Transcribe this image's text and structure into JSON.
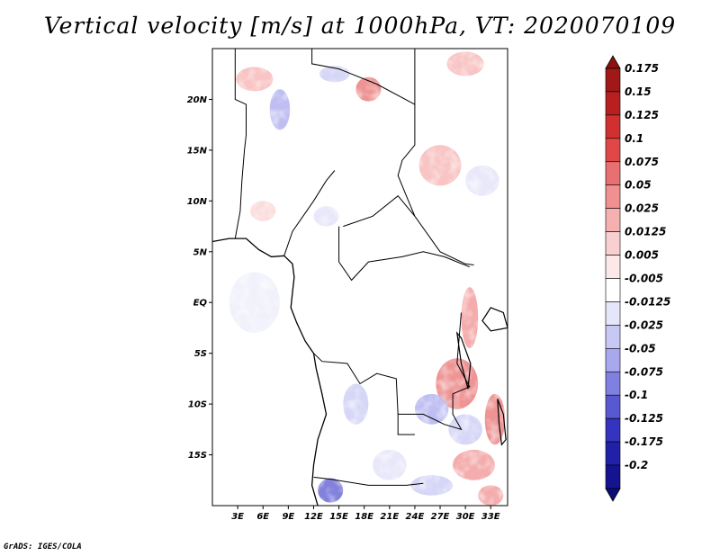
{
  "title": "Vertical velocity [m/s] at 1000hPa, VT: 2020070109",
  "credit": "GrADS: IGES/COLA",
  "map": {
    "lon_range": [
      0,
      35
    ],
    "lat_range": [
      -20,
      25
    ],
    "lat_ticks": [
      {
        "value": 20,
        "label": "20N"
      },
      {
        "value": 15,
        "label": "15N"
      },
      {
        "value": 10,
        "label": "10N"
      },
      {
        "value": 5,
        "label": "5N"
      },
      {
        "value": 0,
        "label": "EQ"
      },
      {
        "value": -5,
        "label": "5S"
      },
      {
        "value": -10,
        "label": "10S"
      },
      {
        "value": -15,
        "label": "15S"
      }
    ],
    "lon_ticks": [
      {
        "value": 3,
        "label": "3E"
      },
      {
        "value": 6,
        "label": "6E"
      },
      {
        "value": 9,
        "label": "9E"
      },
      {
        "value": 12,
        "label": "12E"
      },
      {
        "value": 15,
        "label": "15E"
      },
      {
        "value": 18,
        "label": "18E"
      },
      {
        "value": 21,
        "label": "21E"
      },
      {
        "value": 24,
        "label": "24E"
      },
      {
        "value": 27,
        "label": "27E"
      },
      {
        "value": 30,
        "label": "30E"
      },
      {
        "value": 33,
        "label": "33E"
      }
    ],
    "coastline": [
      [
        0,
        6
      ],
      [
        2,
        6.3
      ],
      [
        4,
        6.3
      ],
      [
        5.5,
        5.2
      ],
      [
        7,
        4.5
      ],
      [
        8.5,
        4.6
      ],
      [
        9.5,
        3.8
      ],
      [
        9.7,
        2.5
      ],
      [
        9.5,
        1
      ],
      [
        9.3,
        -0.5
      ],
      [
        10,
        -2
      ],
      [
        11,
        -3.8
      ],
      [
        12,
        -5
      ],
      [
        12.3,
        -6.5
      ],
      [
        13,
        -9
      ],
      [
        13.5,
        -11
      ],
      [
        12.5,
        -13.5
      ],
      [
        12,
        -16
      ],
      [
        11.8,
        -18
      ],
      [
        12.5,
        -20
      ]
    ],
    "borders": [
      [
        [
          2.7,
          25
        ],
        [
          2.7,
          20
        ],
        [
          4,
          19.5
        ],
        [
          4,
          16.5
        ],
        [
          3.8,
          15
        ]
      ],
      [
        [
          11.8,
          25
        ],
        [
          11.8,
          23.5
        ],
        [
          15,
          23
        ],
        [
          19.5,
          21.5
        ],
        [
          24,
          19.5
        ],
        [
          24,
          25
        ]
      ],
      [
        [
          24,
          19.5
        ],
        [
          24,
          15.5
        ],
        [
          22.5,
          14
        ],
        [
          22,
          12.5
        ],
        [
          23,
          10.5
        ],
        [
          24,
          8.5
        ]
      ],
      [
        [
          24,
          8.5
        ],
        [
          27,
          5
        ],
        [
          30,
          3.8
        ],
        [
          31,
          3.7
        ]
      ],
      [
        [
          15.5,
          7.5
        ],
        [
          19,
          8.5
        ],
        [
          22,
          10.5
        ],
        [
          24,
          8.5
        ]
      ],
      [
        [
          15,
          7.5
        ],
        [
          15,
          4
        ],
        [
          16.5,
          2.2
        ],
        [
          18.5,
          4
        ],
        [
          22.5,
          4.5
        ],
        [
          25,
          5
        ],
        [
          27.5,
          4.5
        ],
        [
          30.5,
          3.5
        ]
      ],
      [
        [
          29.5,
          -1
        ],
        [
          29.3,
          -3
        ],
        [
          29,
          -6
        ],
        [
          30.5,
          -8.3
        ],
        [
          28.5,
          -9
        ],
        [
          28.5,
          -11
        ],
        [
          29.5,
          -12.5
        ],
        [
          27.5,
          -12
        ],
        [
          25,
          -11
        ],
        [
          24,
          -11
        ],
        [
          22,
          -11
        ],
        [
          22,
          -13
        ],
        [
          24,
          -13
        ]
      ],
      [
        [
          12,
          -5
        ],
        [
          13,
          -5.8
        ],
        [
          16,
          -6
        ],
        [
          17.5,
          -8
        ],
        [
          19.5,
          -7
        ],
        [
          21.8,
          -7.5
        ],
        [
          22,
          -11
        ]
      ],
      [
        [
          12,
          -17.2
        ],
        [
          14,
          -17.4
        ],
        [
          18.5,
          -18
        ],
        [
          21,
          -18
        ],
        [
          23,
          -18
        ],
        [
          25,
          -17.8
        ]
      ],
      [
        [
          8.5,
          4.6
        ],
        [
          9.5,
          7
        ],
        [
          12,
          10
        ],
        [
          13.5,
          12
        ],
        [
          14.5,
          13
        ]
      ],
      [
        [
          3.8,
          15
        ],
        [
          3.5,
          12
        ],
        [
          3.3,
          9
        ],
        [
          2.7,
          6.3
        ]
      ]
    ],
    "lakes": [
      [
        [
          29,
          -3
        ],
        [
          29.5,
          -6
        ],
        [
          30.3,
          -8.5
        ],
        [
          30.6,
          -6
        ],
        [
          29.5,
          -3.5
        ]
      ],
      [
        [
          33,
          -0.5
        ],
        [
          34.5,
          -1
        ],
        [
          35,
          -2.5
        ],
        [
          33,
          -2.8
        ],
        [
          32,
          -1.8
        ]
      ],
      [
        [
          33.8,
          -9.5
        ],
        [
          34.5,
          -11
        ],
        [
          34.8,
          -13.5
        ],
        [
          34.3,
          -14
        ],
        [
          34,
          -12
        ]
      ]
    ]
  },
  "shading_regions": [
    {
      "lon": 5,
      "lat": 22,
      "rx": 2.2,
      "ry": 1.2,
      "sign": 1,
      "level": 2
    },
    {
      "lon": 8,
      "lat": 19,
      "rx": 1.2,
      "ry": 2,
      "sign": -1,
      "level": 3
    },
    {
      "lon": 18.5,
      "lat": 21,
      "rx": 1.5,
      "ry": 1.2,
      "sign": 1,
      "level": 4
    },
    {
      "lon": 14.5,
      "lat": 22.5,
      "rx": 1.8,
      "ry": 0.8,
      "sign": -1,
      "level": 2
    },
    {
      "lon": 27,
      "lat": 13.5,
      "rx": 2.5,
      "ry": 2,
      "sign": 1,
      "level": 2
    },
    {
      "lon": 30,
      "lat": 23.5,
      "rx": 2.2,
      "ry": 1.2,
      "sign": 1,
      "level": 2
    },
    {
      "lon": 32,
      "lat": 12,
      "rx": 2,
      "ry": 1.5,
      "sign": -1,
      "level": 1
    },
    {
      "lon": 13.5,
      "lat": 8.5,
      "rx": 1.5,
      "ry": 1,
      "sign": -1,
      "level": 1
    },
    {
      "lon": 6,
      "lat": 9,
      "rx": 1.5,
      "ry": 1,
      "sign": 1,
      "level": 1
    },
    {
      "lon": 30.5,
      "lat": -1.5,
      "rx": 1,
      "ry": 3,
      "sign": 1,
      "level": 3
    },
    {
      "lon": 29,
      "lat": -8,
      "rx": 2.5,
      "ry": 2.5,
      "sign": 1,
      "level": 4
    },
    {
      "lon": 26,
      "lat": -10.5,
      "rx": 2,
      "ry": 1.5,
      "sign": -1,
      "level": 3
    },
    {
      "lon": 17,
      "lat": -10,
      "rx": 1.5,
      "ry": 2,
      "sign": -1,
      "level": 2
    },
    {
      "lon": 14,
      "lat": -18.5,
      "rx": 1.5,
      "ry": 1.2,
      "sign": -1,
      "level": 5
    },
    {
      "lon": 31,
      "lat": -16,
      "rx": 2.5,
      "ry": 1.5,
      "sign": 1,
      "level": 3
    },
    {
      "lon": 33.5,
      "lat": -11.5,
      "rx": 1.2,
      "ry": 2.5,
      "sign": 1,
      "level": 4
    },
    {
      "lon": 30,
      "lat": -12.5,
      "rx": 2,
      "ry": 1.5,
      "sign": -1,
      "level": 2
    },
    {
      "lon": 21,
      "lat": -16,
      "rx": 2,
      "ry": 1.5,
      "sign": -1,
      "level": 1
    },
    {
      "lon": 26,
      "lat": -18,
      "rx": 2.5,
      "ry": 1,
      "sign": -1,
      "level": 2
    },
    {
      "lon": 33,
      "lat": -19,
      "rx": 1.5,
      "ry": 1,
      "sign": 1,
      "level": 3
    },
    {
      "lon": 5,
      "lat": 0,
      "rx": 3,
      "ry": 3,
      "sign": -1,
      "level": 0
    }
  ],
  "legend": {
    "levels": [
      {
        "label": "0.175",
        "color": "#a01818"
      },
      {
        "label": "0.15",
        "color": "#b82020"
      },
      {
        "label": "0.125",
        "color": "#d03030"
      },
      {
        "label": "0.1",
        "color": "#e04848"
      },
      {
        "label": "0.075",
        "color": "#e87070"
      },
      {
        "label": "0.05",
        "color": "#f09090"
      },
      {
        "label": "0.025",
        "color": "#f5b0b0"
      },
      {
        "label": "0.0125",
        "color": "#f9d0d0"
      },
      {
        "label": "0.005",
        "color": "#fce8e8"
      },
      {
        "label": "-0.005",
        "color": "#ffffff"
      },
      {
        "label": "-0.0125",
        "color": "#e6e6fa"
      },
      {
        "label": "-0.025",
        "color": "#c8c8f4"
      },
      {
        "label": "-0.05",
        "color": "#a8a8ee"
      },
      {
        "label": "-0.075",
        "color": "#8080e0"
      },
      {
        "label": "-0.1",
        "color": "#5858d0"
      },
      {
        "label": "-0.125",
        "color": "#3434c0"
      },
      {
        "label": "-0.175",
        "color": "#2020a8"
      },
      {
        "label": "-0.2",
        "color": "#141490"
      }
    ],
    "top_color": "#8c1010",
    "bottom_color": "#0c0c78"
  }
}
